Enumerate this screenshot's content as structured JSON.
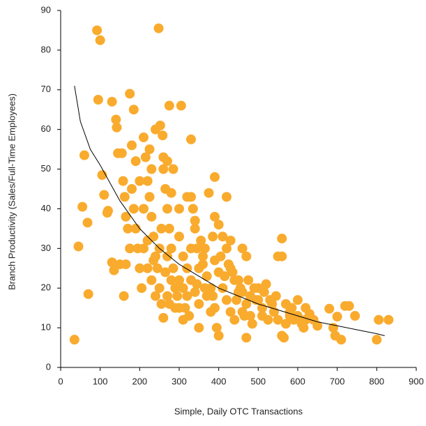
{
  "chart_data": {
    "type": "scatter",
    "x_label": "Simple, Daily OTC Transactions",
    "y_label": "Branch Productivity (Sales/Full-Time Employees)",
    "color": "#f9ab2e",
    "xlim": [
      0,
      900
    ],
    "ylim": [
      0,
      90
    ],
    "xticks": [
      0,
      100,
      200,
      300,
      400,
      500,
      600,
      700,
      800,
      900
    ],
    "yticks": [
      0,
      10,
      20,
      30,
      40,
      50,
      60,
      70,
      80,
      90
    ],
    "x": [
      35,
      45,
      55,
      60,
      68,
      70,
      92,
      100,
      95,
      105,
      110,
      118,
      120,
      130,
      130,
      135,
      140,
      142,
      145,
      150,
      155,
      158,
      160,
      162,
      165,
      175,
      180,
      185,
      248,
      252,
      258,
      275,
      305,
      330,
      390,
      560,
      560,
      550,
      700,
      720,
      730,
      745,
      800,
      805,
      830,
      710,
      695,
      690,
      680,
      650,
      640,
      630,
      620,
      615,
      600,
      590,
      580,
      570,
      565,
      560,
      520,
      510,
      500,
      480,
      470,
      460,
      450,
      440,
      430,
      420,
      410,
      400,
      395,
      390,
      380,
      370,
      360,
      350,
      345,
      340,
      335,
      330,
      320,
      310,
      300,
      290,
      285,
      280,
      275,
      270,
      265,
      260,
      255,
      250,
      245,
      240,
      235,
      230,
      225,
      220,
      215,
      210,
      205,
      200,
      195,
      190,
      185,
      180,
      175,
      170,
      165,
      190,
      200,
      210,
      220,
      230,
      240,
      260,
      270,
      280,
      290,
      300,
      310,
      320,
      330,
      340,
      350,
      360,
      370,
      380,
      390,
      400,
      410,
      420,
      430,
      440,
      450,
      460,
      470,
      480,
      490,
      500,
      510,
      530,
      540,
      550,
      570,
      580,
      600,
      610,
      620,
      300,
      250,
      270,
      310,
      330,
      350,
      230,
      280,
      320,
      240,
      225,
      260,
      270,
      285,
      300,
      340,
      355,
      375,
      365,
      385,
      405,
      425,
      435,
      455,
      475,
      495,
      515,
      535,
      210,
      220,
      235,
      255,
      265,
      275,
      295,
      315,
      325,
      345,
      365,
      385,
      415,
      445,
      465,
      485,
      525,
      545,
      585,
      430,
      470,
      460,
      420,
      400,
      390
    ],
    "values": [
      7,
      30.5,
      40.5,
      53.5,
      36.5,
      18.5,
      85,
      82.5,
      67.5,
      48.5,
      43.5,
      39,
      39.5,
      67,
      26.5,
      24.5,
      62.5,
      60.5,
      54,
      26,
      54,
      47,
      18,
      43,
      38,
      69,
      56,
      65,
      85.5,
      61,
      58.5,
      66,
      66,
      57.5,
      48,
      28,
      32.5,
      28,
      12.8,
      15.5,
      15.5,
      13,
      7,
      12,
      12,
      7,
      8,
      10,
      14.8,
      10.5,
      12,
      13.5,
      15,
      10,
      17,
      12,
      13,
      11,
      7.5,
      8,
      21,
      13,
      20,
      18,
      7.5,
      14,
      19,
      22,
      25,
      30,
      33,
      8,
      10,
      15,
      20,
      23,
      26,
      10,
      30,
      35,
      40,
      43,
      18,
      12,
      15,
      20,
      25,
      30,
      35,
      40,
      45,
      50,
      16,
      20,
      25,
      28,
      33,
      38,
      43,
      47,
      53,
      58,
      20,
      25,
      30,
      35,
      40,
      45,
      30,
      35,
      26,
      52,
      47,
      40,
      32,
      22,
      18,
      12.5,
      28,
      22,
      15,
      33,
      28,
      25,
      22,
      19,
      16,
      28,
      18,
      14,
      27,
      24,
      20,
      17,
      14,
      12,
      22,
      19,
      16,
      13,
      20,
      17,
      15,
      17,
      14,
      12,
      16,
      14,
      13,
      11,
      12,
      22,
      30,
      18,
      20,
      30,
      25,
      50,
      44,
      43,
      60,
      55,
      53,
      52,
      50,
      40,
      37,
      32,
      44,
      30,
      33,
      28,
      26,
      24,
      20,
      22,
      17,
      19,
      16,
      30,
      25,
      27,
      35,
      24,
      16,
      18,
      15,
      13,
      21,
      20,
      18,
      23,
      17,
      13,
      11,
      12,
      18,
      15,
      32,
      28,
      30,
      43,
      36,
      38
    ],
    "trendline": {
      "x": [
        35,
        50,
        75,
        100,
        150,
        200,
        250,
        300,
        350,
        400,
        450,
        500,
        550,
        600,
        650,
        700,
        750,
        800,
        820
      ],
      "values": [
        71,
        62,
        55,
        51,
        42,
        35,
        30,
        26,
        23,
        20,
        18,
        16,
        14.5,
        13,
        11.5,
        10.5,
        9.5,
        8.5,
        8
      ]
    }
  }
}
